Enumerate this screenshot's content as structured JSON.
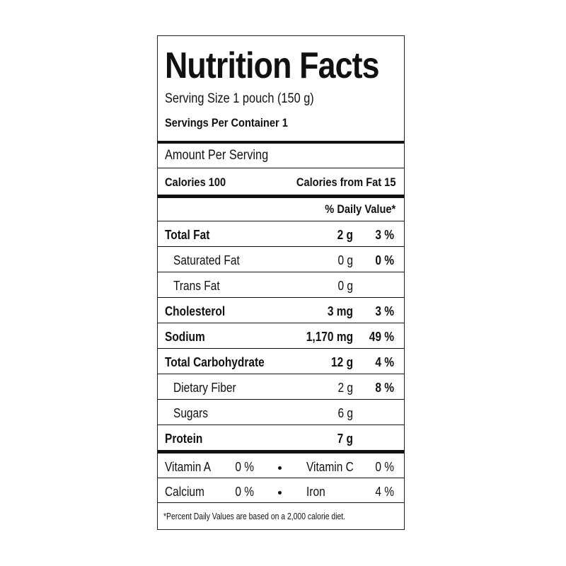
{
  "title": "Nutrition Facts",
  "serving_size": "Serving Size 1 pouch (150 g)",
  "servings_per_container": "Servings Per Container 1",
  "amount_per_serving": "Amount Per Serving",
  "calories": "Calories 100",
  "calories_from_fat": "Calories from Fat 15",
  "daily_value_header": "% Daily Value*",
  "nutrients": [
    {
      "name": "Total Fat",
      "amount": "2 g",
      "dv": "3 %",
      "bold": true,
      "indent": false
    },
    {
      "name": "Saturated Fat",
      "amount": "0 g",
      "dv": "0 %",
      "bold": false,
      "indent": true
    },
    {
      "name": "Trans Fat",
      "amount": "0 g",
      "bold": false,
      "indent": true
    },
    {
      "name": "Cholesterol",
      "amount": "3 mg",
      "dv": "3 %",
      "bold": true,
      "indent": false
    },
    {
      "name": "Sodium",
      "amount": "1,170 mg",
      "dv": "49 %",
      "bold": true,
      "indent": false
    },
    {
      "name": "Total Carbohydrate",
      "amount": "12 g",
      "dv": "4 %",
      "bold": true,
      "indent": false
    },
    {
      "name": "Dietary Fiber",
      "amount": "2 g",
      "dv": "8 %",
      "bold": false,
      "indent": true
    },
    {
      "name": "Sugars",
      "amount": "6 g",
      "bold": false,
      "indent": true
    },
    {
      "name": "Protein",
      "amount": "7 g",
      "bold": true,
      "indent": false
    }
  ],
  "vitamins": [
    [
      {
        "name": "Vitamin A",
        "dv": "0 %"
      },
      {
        "name": "Vitamin C",
        "dv": "0 %"
      }
    ],
    [
      {
        "name": "Calcium",
        "dv": "0 %"
      },
      {
        "name": "Iron",
        "dv": "4 %"
      }
    ]
  ],
  "footnote": "*Percent Daily Values are based on a 2,000 calorie diet."
}
